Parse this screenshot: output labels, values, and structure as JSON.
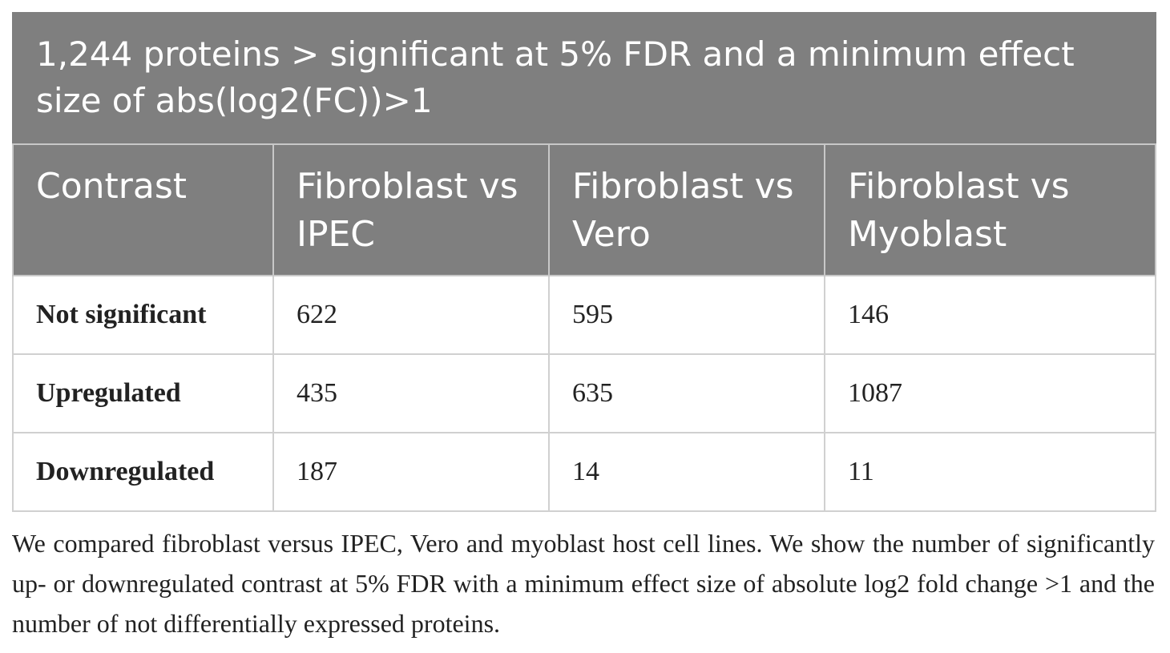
{
  "header": {
    "title": "1,244 proteins > significant at 5% FDR and a minimum effect size of abs(log2(FC))>1"
  },
  "table": {
    "columns": [
      "Contrast",
      "Fibroblast vs IPEC",
      "Fibroblast vs Vero",
      "Fibroblast vs Myoblast"
    ],
    "rows": [
      [
        "Not significant",
        622,
        595,
        146
      ],
      [
        "Upregulated",
        435,
        635,
        1087
      ],
      [
        "Downregulated",
        187,
        14,
        11
      ]
    ]
  },
  "caption": "We compared fibroblast versus IPEC, Vero and myoblast host cell lines. We show the number of significantly up- or downregulated contrast at 5% FDR with a minimum effect size of absolute log2 fold change >1 and the number of not differentially expressed proteins."
}
